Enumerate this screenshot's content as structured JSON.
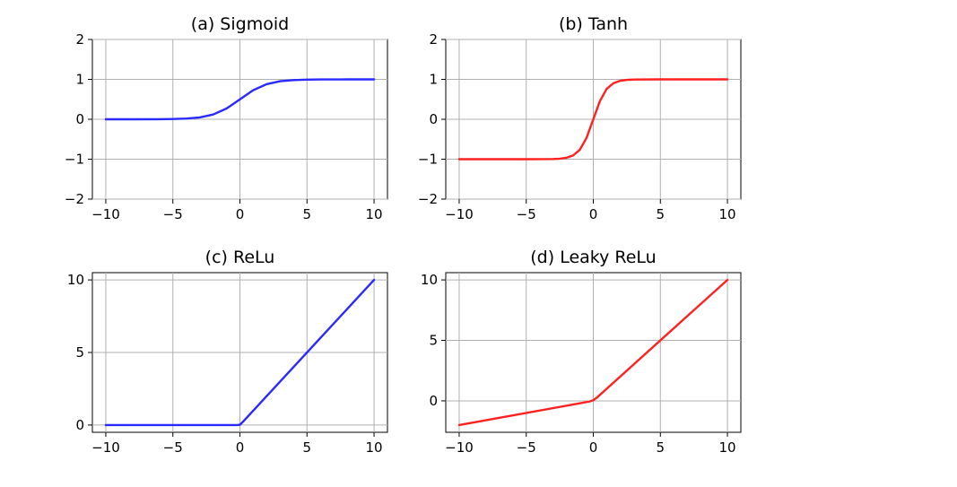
{
  "chart_data": [
    {
      "type": "line",
      "title": "(a) Sigmoid",
      "xlabel": "",
      "ylabel": "",
      "xlim": [
        -10,
        10
      ],
      "ylim": [
        -2,
        2
      ],
      "xticks": [
        -10,
        -5,
        0,
        5,
        10
      ],
      "xtick_labels": [
        "−10",
        "−5",
        "0",
        "5",
        "10"
      ],
      "yticks": [
        -2,
        -1,
        0,
        1,
        2
      ],
      "ytick_labels": [
        "−2",
        "−1",
        "0",
        "1",
        "2"
      ],
      "grid": true,
      "series": [
        {
          "color": "#2a2aff",
          "x": [
            -10,
            -8,
            -6,
            -5,
            -4,
            -3,
            -2,
            -1,
            0,
            1,
            2,
            3,
            4,
            5,
            6,
            8,
            10
          ],
          "y": [
            0.0,
            0.0003,
            0.0025,
            0.0067,
            0.018,
            0.047,
            0.119,
            0.269,
            0.5,
            0.731,
            0.881,
            0.953,
            0.982,
            0.993,
            0.998,
            0.9997,
            1.0
          ]
        }
      ]
    },
    {
      "type": "line",
      "title": "(b) Tanh",
      "xlabel": "",
      "ylabel": "",
      "xlim": [
        -10,
        10
      ],
      "ylim": [
        -2,
        2
      ],
      "xticks": [
        -10,
        -5,
        0,
        5,
        10
      ],
      "xtick_labels": [
        "−10",
        "−5",
        "0",
        "5",
        "10"
      ],
      "yticks": [
        -2,
        -1,
        0,
        1,
        2
      ],
      "ytick_labels": [
        "−2",
        "−1",
        "0",
        "1",
        "2"
      ],
      "grid": true,
      "series": [
        {
          "color": "#ff2020",
          "x": [
            -10,
            -5,
            -3,
            -2.5,
            -2,
            -1.5,
            -1,
            -0.5,
            0,
            0.5,
            1,
            1.5,
            2,
            2.5,
            3,
            5,
            10
          ],
          "y": [
            -1.0,
            -0.9999,
            -0.995,
            -0.987,
            -0.964,
            -0.905,
            -0.762,
            -0.462,
            0.0,
            0.462,
            0.762,
            0.905,
            0.964,
            0.987,
            0.995,
            0.9999,
            1.0
          ]
        }
      ]
    },
    {
      "type": "line",
      "title": "(c) ReLu",
      "xlabel": "",
      "ylabel": "",
      "xlim": [
        -10,
        10
      ],
      "ylim": [
        -0.5,
        10.5
      ],
      "xticks": [
        -10,
        -5,
        0,
        5,
        10
      ],
      "xtick_labels": [
        "−10",
        "−5",
        "0",
        "5",
        "10"
      ],
      "yticks": [
        0,
        5,
        10
      ],
      "ytick_labels": [
        "0",
        "5",
        "10"
      ],
      "grid": true,
      "series": [
        {
          "color": "#2a2aff",
          "x": [
            -10,
            -0.2,
            0,
            0.2,
            10
          ],
          "y": [
            0,
            0,
            0.02,
            0.2,
            10
          ]
        }
      ]
    },
    {
      "type": "line",
      "title": "(d) Leaky ReLu",
      "xlabel": "",
      "ylabel": "",
      "xlim": [
        -10,
        10
      ],
      "ylim": [
        -2.6,
        10.6
      ],
      "xticks": [
        -10,
        -5,
        0,
        5,
        10
      ],
      "xtick_labels": [
        "−10",
        "−5",
        "0",
        "5",
        "10"
      ],
      "yticks": [
        0,
        5,
        10
      ],
      "ytick_labels": [
        "0",
        "5",
        "10"
      ],
      "grid": true,
      "series": [
        {
          "color": "#ff2020",
          "x": [
            -10,
            -0.3,
            0,
            0.3,
            10
          ],
          "y": [
            -2,
            -0.06,
            0.05,
            0.3,
            10
          ]
        }
      ]
    }
  ]
}
